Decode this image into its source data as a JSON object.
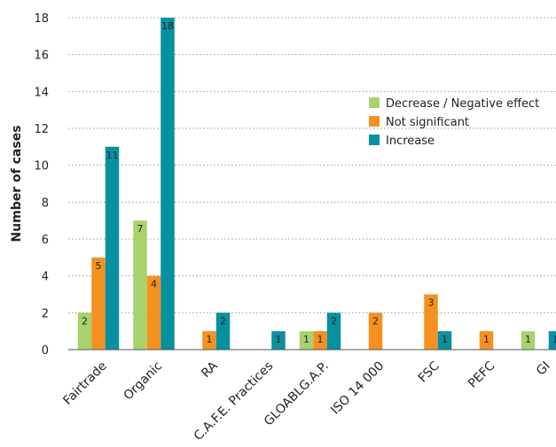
{
  "chart_data": {
    "type": "bar",
    "title": "",
    "xlabel": "",
    "ylabel": "Number of cases",
    "ylim": [
      0,
      18
    ],
    "yticks": [
      0,
      2,
      4,
      6,
      8,
      10,
      12,
      14,
      16,
      18
    ],
    "grid": true,
    "legend_position": "upper-right",
    "categories": [
      "Fairtrade",
      "Organic",
      "RA",
      "C.A.F.E. Practices",
      "GLOABLG.A.P.",
      "ISO 14 000",
      "FSC",
      "PEFC",
      "GI"
    ],
    "series": [
      {
        "name": "Decrease / Negative effect",
        "color": "#a8d26b",
        "values": [
          2,
          7,
          0,
          0,
          1,
          0,
          0,
          0,
          1
        ]
      },
      {
        "name": "Not significant",
        "color": "#f49121",
        "values": [
          5,
          4,
          1,
          0,
          1,
          2,
          3,
          1,
          0
        ]
      },
      {
        "name": "Increase",
        "color": "#0790a0",
        "values": [
          11,
          18,
          2,
          1,
          2,
          0,
          1,
          0,
          1
        ]
      }
    ],
    "data_labels": {
      "show": true,
      "display": [
        [
          "2",
          "7",
          "",
          "",
          "1",
          "",
          "",
          "",
          "1"
        ],
        [
          "5",
          "4",
          "1",
          "",
          "1",
          "2",
          "3",
          "1",
          ""
        ],
        [
          "11",
          "18",
          "2",
          "1",
          "2",
          "",
          "1",
          "",
          "1"
        ]
      ]
    }
  }
}
